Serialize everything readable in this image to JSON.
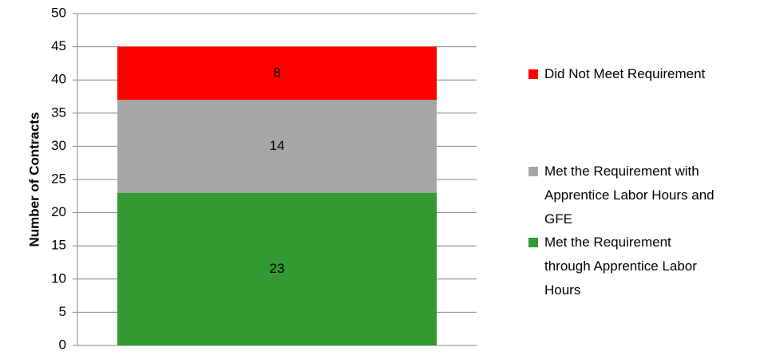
{
  "chart_data": {
    "type": "stacked_bar",
    "y_label": "Number of Contracts",
    "categories": [
      null
    ],
    "series": [
      {
        "name": "Met the Requirement through Apprentice Labor Hours",
        "color": "#339933",
        "values": [
          23
        ]
      },
      {
        "name": "Met the Requirement with Apprentice Labor Hours and GFE",
        "color": "#a6a6a6",
        "values": [
          14
        ]
      },
      {
        "name": "Did Not Meet Requirement",
        "color": "#ff0000",
        "values": [
          8
        ]
      }
    ],
    "ylim": [
      0,
      50
    ],
    "yticks": [
      0,
      5,
      10,
      15,
      20,
      25,
      30,
      35,
      40,
      45,
      50
    ],
    "grid": true,
    "legend": "right"
  }
}
